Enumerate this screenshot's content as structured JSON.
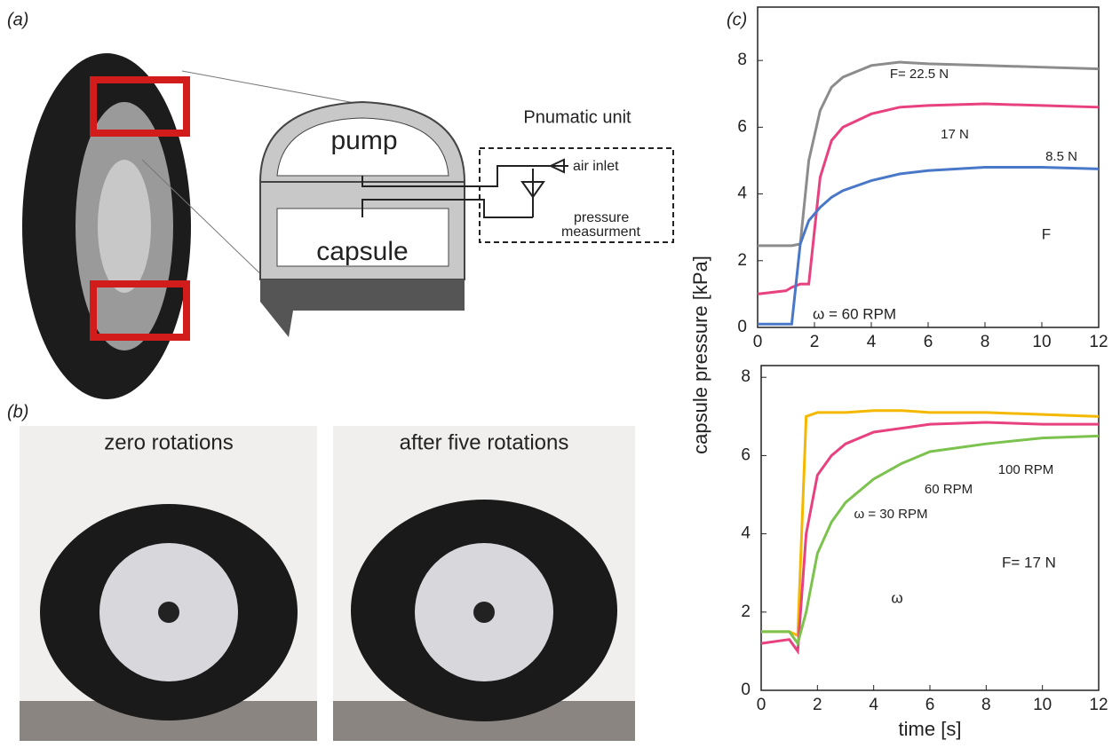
{
  "panels": {
    "a": "(a)",
    "b": "(b)",
    "c": "(c)"
  },
  "diagram": {
    "unit_title": "Pnumatic unit",
    "pump": "pump",
    "capsule": "capsule",
    "air_inlet": "air inlet",
    "pressure": "pressure",
    "measurement": "measurment"
  },
  "photos": {
    "left": "zero rotations",
    "right": "after five rotations"
  },
  "ylabel": "capsule pressure [kPa]",
  "chart_data": [
    {
      "type": "line",
      "xlim": [
        0,
        12
      ],
      "ylim": [
        0,
        9.6
      ],
      "xticks": [
        0,
        2,
        4,
        6,
        8,
        10,
        12
      ],
      "yticks": [
        0,
        2,
        4,
        6,
        8
      ],
      "x": [
        0,
        1,
        1.2,
        1.5,
        1.8,
        2.2,
        2.6,
        3,
        4,
        5,
        6,
        8,
        10,
        12
      ],
      "series": [
        {
          "name": "F= 22.5 N",
          "color": "#8c8c8c",
          "values": [
            2.45,
            2.45,
            2.45,
            2.5,
            5,
            6.5,
            7.2,
            7.5,
            7.85,
            7.95,
            7.9,
            7.85,
            7.8,
            7.75
          ]
        },
        {
          "name": "17 N",
          "color": "#e8417f",
          "values": [
            1.0,
            1.1,
            1.2,
            1.3,
            1.3,
            4.5,
            5.6,
            6.0,
            6.4,
            6.6,
            6.65,
            6.7,
            6.65,
            6.6
          ]
        },
        {
          "name": "8.5 N",
          "color": "#4a78c8",
          "values": [
            0.1,
            0.1,
            0.1,
            2.5,
            3.2,
            3.6,
            3.9,
            4.1,
            4.4,
            4.6,
            4.7,
            4.8,
            4.8,
            4.75
          ]
        }
      ],
      "annotations": [
        "ω = 60 RPM",
        "F"
      ]
    },
    {
      "type": "line",
      "xlim": [
        0,
        12
      ],
      "ylim": [
        0,
        8.3
      ],
      "xticks": [
        0,
        2,
        4,
        6,
        8,
        10,
        12
      ],
      "yticks": [
        0,
        2,
        4,
        6,
        8
      ],
      "xlabel": "time [s]",
      "x": [
        0,
        1,
        1.3,
        1.6,
        2,
        2.5,
        3,
        4,
        5,
        6,
        8,
        10,
        12
      ],
      "series": [
        {
          "name": "100 RPM",
          "color": "#f5b800",
          "values": [
            1.5,
            1.5,
            1.4,
            7.0,
            7.1,
            7.1,
            7.1,
            7.15,
            7.15,
            7.1,
            7.1,
            7.05,
            7.0
          ]
        },
        {
          "name": "60 RPM",
          "color": "#e8417f",
          "values": [
            1.2,
            1.3,
            1.0,
            4.0,
            5.5,
            6.0,
            6.3,
            6.6,
            6.7,
            6.8,
            6.85,
            6.8,
            6.8
          ]
        },
        {
          "name": "ω = 30 RPM",
          "color": "#7cc24e",
          "values": [
            1.5,
            1.5,
            1.2,
            2.0,
            3.5,
            4.3,
            4.8,
            5.4,
            5.8,
            6.1,
            6.3,
            6.45,
            6.5
          ]
        }
      ],
      "annotations": [
        "F= 17 N",
        "ω"
      ]
    }
  ]
}
